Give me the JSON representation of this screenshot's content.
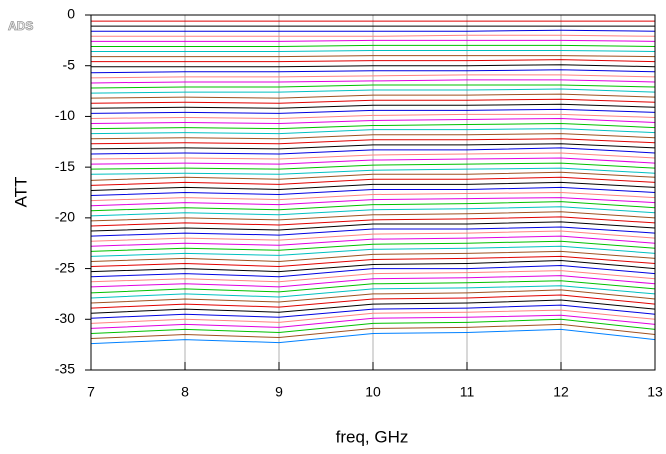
{
  "logo": "ADS",
  "chart_data": {
    "type": "line",
    "xlabel": "freq, GHz",
    "ylabel": "ATT",
    "x": [
      7,
      8,
      9,
      10,
      11,
      12,
      13
    ],
    "xlim": [
      7,
      13
    ],
    "xticks": [
      7,
      8,
      9,
      10,
      11,
      12,
      13
    ],
    "ylim": [
      -35,
      0
    ],
    "yticks": [
      -35,
      -30,
      -25,
      -20,
      -15,
      -10,
      -5,
      0
    ],
    "grid_x": true,
    "series": [
      {
        "color": "#e00000",
        "values": [
          -0.6,
          -0.6,
          -0.6,
          -0.6,
          -0.6,
          -0.6,
          -0.6
        ]
      },
      {
        "color": "#000000",
        "values": [
          -1.1,
          -1.1,
          -1.1,
          -1.1,
          -1.1,
          -1.1,
          -1.1
        ]
      },
      {
        "color": "#0000e0",
        "values": [
          -1.6,
          -1.6,
          -1.6,
          -1.6,
          -1.6,
          -1.5,
          -1.6
        ]
      },
      {
        "color": "#ff8080",
        "values": [
          -2.1,
          -2.1,
          -2.1,
          -2.1,
          -2.0,
          -2.0,
          -2.1
        ]
      },
      {
        "color": "#e000e0",
        "values": [
          -2.6,
          -2.6,
          -2.6,
          -2.5,
          -2.5,
          -2.5,
          -2.6
        ]
      },
      {
        "color": "#00c000",
        "values": [
          -3.1,
          -3.1,
          -3.1,
          -3.0,
          -3.0,
          -3.0,
          -3.1
        ]
      },
      {
        "color": "#00c0c0",
        "values": [
          -3.6,
          -3.6,
          -3.6,
          -3.5,
          -3.5,
          -3.5,
          -3.6
        ]
      },
      {
        "color": "#a05020",
        "values": [
          -4.1,
          -4.1,
          -4.1,
          -4.0,
          -4.0,
          -4.0,
          -4.1
        ]
      },
      {
        "color": "#e00000",
        "values": [
          -4.6,
          -4.6,
          -4.6,
          -4.5,
          -4.5,
          -4.4,
          -4.6
        ]
      },
      {
        "color": "#000000",
        "values": [
          -5.1,
          -5.1,
          -5.1,
          -5.0,
          -5.0,
          -4.9,
          -5.1
        ]
      },
      {
        "color": "#0000e0",
        "values": [
          -5.7,
          -5.6,
          -5.6,
          -5.5,
          -5.5,
          -5.4,
          -5.6
        ]
      },
      {
        "color": "#ff8080",
        "values": [
          -6.2,
          -6.1,
          -6.1,
          -6.0,
          -5.9,
          -5.9,
          -6.1
        ]
      },
      {
        "color": "#e000e0",
        "values": [
          -6.7,
          -6.6,
          -6.6,
          -6.5,
          -6.4,
          -6.4,
          -6.6
        ]
      },
      {
        "color": "#00c000",
        "values": [
          -7.2,
          -7.1,
          -7.1,
          -6.9,
          -6.9,
          -6.9,
          -7.1
        ]
      },
      {
        "color": "#00c0c0",
        "values": [
          -7.7,
          -7.6,
          -7.6,
          -7.4,
          -7.4,
          -7.3,
          -7.6
        ]
      },
      {
        "color": "#a05020",
        "values": [
          -8.2,
          -8.1,
          -8.2,
          -7.9,
          -7.9,
          -7.8,
          -8.1
        ]
      },
      {
        "color": "#e00000",
        "values": [
          -8.7,
          -8.6,
          -8.7,
          -8.4,
          -8.4,
          -8.3,
          -8.6
        ]
      },
      {
        "color": "#000000",
        "values": [
          -9.2,
          -9.1,
          -9.2,
          -8.9,
          -8.9,
          -8.8,
          -9.1
        ]
      },
      {
        "color": "#0000e0",
        "values": [
          -9.7,
          -9.6,
          -9.7,
          -9.4,
          -9.4,
          -9.3,
          -9.6
        ]
      },
      {
        "color": "#ff8080",
        "values": [
          -10.2,
          -10.1,
          -10.2,
          -9.9,
          -9.8,
          -9.8,
          -10.1
        ]
      },
      {
        "color": "#e000e0",
        "values": [
          -10.7,
          -10.6,
          -10.7,
          -10.4,
          -10.3,
          -10.2,
          -10.6
        ]
      },
      {
        "color": "#00c000",
        "values": [
          -11.2,
          -11.1,
          -11.2,
          -10.9,
          -10.8,
          -10.7,
          -11.1
        ]
      },
      {
        "color": "#00c0c0",
        "values": [
          -11.7,
          -11.6,
          -11.7,
          -11.3,
          -11.3,
          -11.2,
          -11.6
        ]
      },
      {
        "color": "#a05020",
        "values": [
          -12.2,
          -12.1,
          -12.2,
          -11.8,
          -11.8,
          -11.7,
          -12.1
        ]
      },
      {
        "color": "#e00000",
        "values": [
          -12.7,
          -12.6,
          -12.7,
          -12.3,
          -12.3,
          -12.2,
          -12.6
        ]
      },
      {
        "color": "#000000",
        "values": [
          -13.2,
          -13.1,
          -13.2,
          -12.8,
          -12.8,
          -12.7,
          -13.1
        ]
      },
      {
        "color": "#0000e0",
        "values": [
          -13.7,
          -13.6,
          -13.7,
          -13.3,
          -13.3,
          -13.1,
          -13.6
        ]
      },
      {
        "color": "#ff8080",
        "values": [
          -14.2,
          -14.1,
          -14.2,
          -13.8,
          -13.7,
          -13.6,
          -14.1
        ]
      },
      {
        "color": "#e000e0",
        "values": [
          -14.7,
          -14.6,
          -14.7,
          -14.3,
          -14.2,
          -14.1,
          -14.6
        ]
      },
      {
        "color": "#00c000",
        "values": [
          -15.2,
          -15.1,
          -15.2,
          -14.8,
          -14.7,
          -14.6,
          -15.1
        ]
      },
      {
        "color": "#00c0c0",
        "values": [
          -15.7,
          -15.6,
          -15.7,
          -15.3,
          -15.2,
          -15.1,
          -15.6
        ]
      },
      {
        "color": "#a05020",
        "values": [
          -16.3,
          -16.0,
          -16.2,
          -15.7,
          -15.7,
          -15.5,
          -16.0
        ]
      },
      {
        "color": "#e00000",
        "values": [
          -16.8,
          -16.5,
          -16.7,
          -16.2,
          -16.2,
          -16.0,
          -16.5
        ]
      },
      {
        "color": "#000000",
        "values": [
          -17.3,
          -17.0,
          -17.2,
          -16.7,
          -16.7,
          -16.5,
          -17.0
        ]
      },
      {
        "color": "#0000e0",
        "values": [
          -17.8,
          -17.5,
          -17.7,
          -17.2,
          -17.2,
          -17.0,
          -17.5
        ]
      },
      {
        "color": "#ff8080",
        "values": [
          -18.3,
          -18.0,
          -18.2,
          -17.7,
          -17.6,
          -17.5,
          -18.0
        ]
      },
      {
        "color": "#e000e0",
        "values": [
          -18.8,
          -18.5,
          -18.7,
          -18.2,
          -18.1,
          -18.0,
          -18.5
        ]
      },
      {
        "color": "#00c000",
        "values": [
          -19.3,
          -19.0,
          -19.2,
          -18.7,
          -18.6,
          -18.4,
          -19.0
        ]
      },
      {
        "color": "#00c0c0",
        "values": [
          -19.8,
          -19.5,
          -19.7,
          -19.2,
          -19.1,
          -18.9,
          -19.5
        ]
      },
      {
        "color": "#a05020",
        "values": [
          -20.3,
          -20.0,
          -20.2,
          -19.7,
          -19.6,
          -19.4,
          -20.0
        ]
      },
      {
        "color": "#e00000",
        "values": [
          -20.8,
          -20.5,
          -20.7,
          -20.2,
          -20.1,
          -19.9,
          -20.5
        ]
      },
      {
        "color": "#000000",
        "values": [
          -21.3,
          -21.0,
          -21.2,
          -20.6,
          -20.6,
          -20.4,
          -21.0
        ]
      },
      {
        "color": "#0000e0",
        "values": [
          -21.8,
          -21.5,
          -21.7,
          -21.1,
          -21.1,
          -20.9,
          -21.5
        ]
      },
      {
        "color": "#ff8080",
        "values": [
          -22.3,
          -22.0,
          -22.2,
          -21.6,
          -21.5,
          -21.3,
          -22.0
        ]
      },
      {
        "color": "#e000e0",
        "values": [
          -22.8,
          -22.5,
          -22.7,
          -22.1,
          -22.0,
          -21.8,
          -22.5
        ]
      },
      {
        "color": "#00c000",
        "values": [
          -23.3,
          -23.0,
          -23.2,
          -22.6,
          -22.5,
          -22.3,
          -23.0
        ]
      },
      {
        "color": "#00c0c0",
        "values": [
          -23.8,
          -23.5,
          -23.7,
          -23.1,
          -23.0,
          -22.8,
          -23.5
        ]
      },
      {
        "color": "#a05020",
        "values": [
          -24.3,
          -24.0,
          -24.3,
          -23.6,
          -23.5,
          -23.3,
          -24.0
        ]
      },
      {
        "color": "#e00000",
        "values": [
          -24.8,
          -24.5,
          -24.8,
          -24.1,
          -24.0,
          -23.8,
          -24.5
        ]
      },
      {
        "color": "#000000",
        "values": [
          -25.3,
          -25.0,
          -25.3,
          -24.6,
          -24.5,
          -24.2,
          -25.0
        ]
      },
      {
        "color": "#0000e0",
        "values": [
          -25.8,
          -25.5,
          -25.8,
          -25.0,
          -25.0,
          -24.7,
          -25.5
        ]
      },
      {
        "color": "#ff8080",
        "values": [
          -26.3,
          -26.0,
          -26.3,
          -25.5,
          -25.4,
          -25.2,
          -26.0
        ]
      },
      {
        "color": "#e000e0",
        "values": [
          -26.8,
          -26.5,
          -26.8,
          -26.0,
          -25.9,
          -25.7,
          -26.5
        ]
      },
      {
        "color": "#00c000",
        "values": [
          -27.4,
          -27.0,
          -27.3,
          -26.5,
          -26.4,
          -26.2,
          -27.0
        ]
      },
      {
        "color": "#00c0c0",
        "values": [
          -27.9,
          -27.5,
          -27.8,
          -27.0,
          -26.9,
          -26.7,
          -27.5
        ]
      },
      {
        "color": "#a05020",
        "values": [
          -28.4,
          -28.0,
          -28.3,
          -27.5,
          -27.4,
          -27.1,
          -28.0
        ]
      },
      {
        "color": "#e00000",
        "values": [
          -28.9,
          -28.5,
          -28.8,
          -28.0,
          -27.9,
          -27.6,
          -28.5
        ]
      },
      {
        "color": "#000000",
        "values": [
          -29.4,
          -29.0,
          -29.3,
          -28.5,
          -28.4,
          -28.1,
          -29.0
        ]
      },
      {
        "color": "#0000e0",
        "values": [
          -29.9,
          -29.5,
          -29.8,
          -29.0,
          -28.9,
          -28.6,
          -29.5
        ]
      },
      {
        "color": "#ff8080",
        "values": [
          -30.4,
          -30.0,
          -30.3,
          -29.4,
          -29.3,
          -29.1,
          -30.0
        ]
      },
      {
        "color": "#e000e0",
        "values": [
          -30.9,
          -30.5,
          -30.8,
          -29.9,
          -29.8,
          -29.6,
          -30.5
        ]
      },
      {
        "color": "#00c000",
        "values": [
          -31.4,
          -31.0,
          -31.3,
          -30.4,
          -30.3,
          -30.0,
          -31.0
        ]
      },
      {
        "color": "#a05020",
        "values": [
          -31.9,
          -31.5,
          -31.8,
          -30.9,
          -30.8,
          -30.5,
          -31.5
        ]
      },
      {
        "color": "#0080ff",
        "values": [
          -32.4,
          -32.0,
          -32.3,
          -31.4,
          -31.3,
          -31.0,
          -32.0
        ]
      }
    ]
  }
}
